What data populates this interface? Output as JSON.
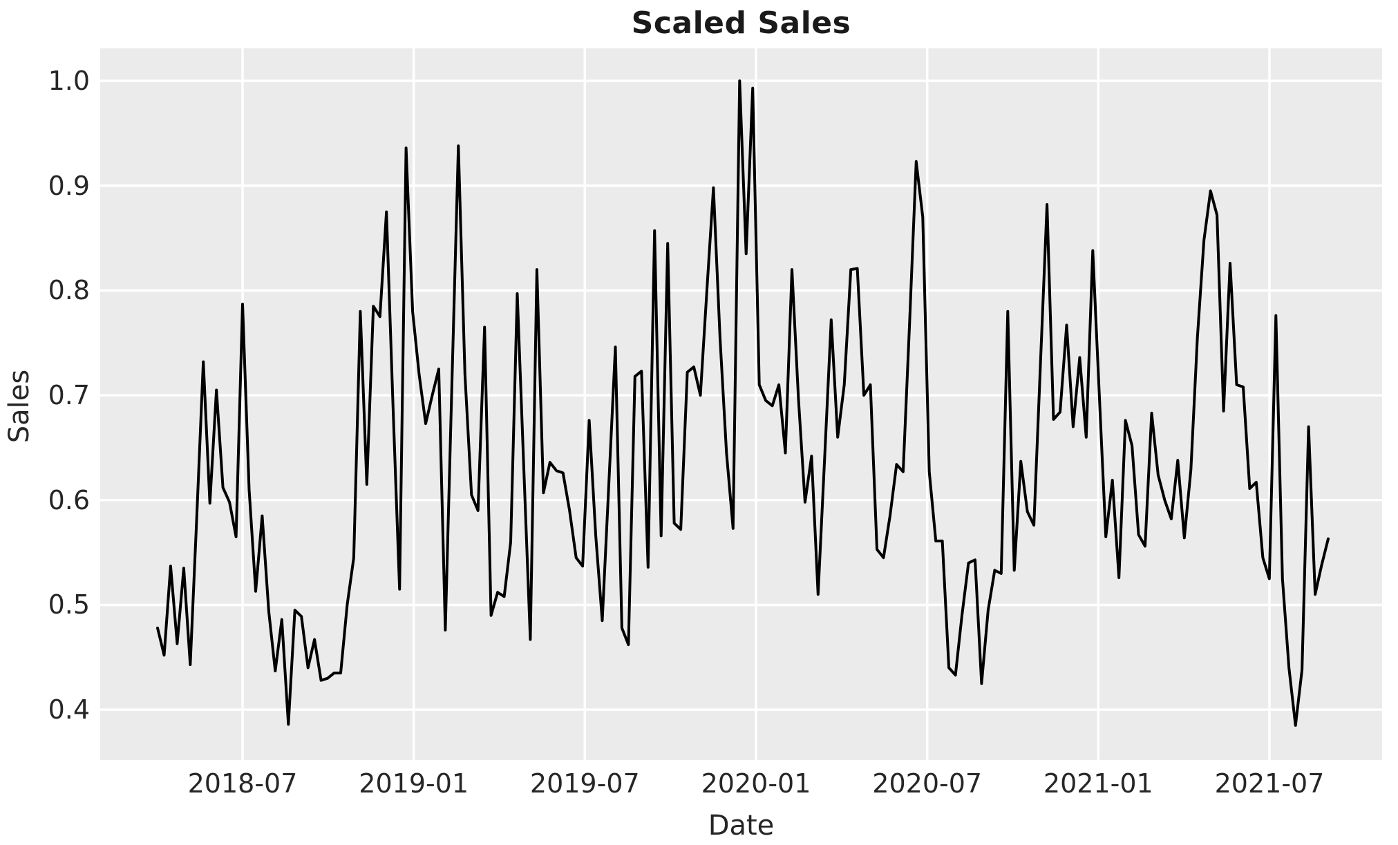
{
  "chart_data": {
    "type": "line",
    "title": "Scaled Sales",
    "xlabel": "Date",
    "ylabel": "Sales",
    "x_tick_labels": [
      "2018-07",
      "2019-01",
      "2019-07",
      "2020-01",
      "2020-07",
      "2021-01",
      "2021-07"
    ],
    "y_ticks": [
      1.0,
      0.9,
      0.8,
      0.7,
      0.6,
      0.5,
      0.4
    ],
    "y_tick_labels": [
      "1.0",
      "0.9",
      "0.8",
      "0.7",
      "0.6",
      "0.5",
      "0.4"
    ],
    "ylim": [
      0.352,
      1.031
    ],
    "grid": true,
    "legend": "none",
    "colors": {
      "line": "#000000",
      "plot_background": "#ebebeb",
      "gridline": "#ffffff",
      "figure_background": "#ffffff",
      "text": "#262626"
    },
    "series": [
      {
        "name": "Sales (scaled)",
        "start_date": "2018-04-01",
        "frequency": "weekly",
        "values": [
          0.478,
          0.452,
          0.537,
          0.463,
          0.535,
          0.443,
          0.585,
          0.732,
          0.597,
          0.705,
          0.612,
          0.598,
          0.565,
          0.787,
          0.61,
          0.513,
          0.585,
          0.494,
          0.437,
          0.486,
          0.386,
          0.495,
          0.489,
          0.44,
          0.467,
          0.428,
          0.43,
          0.435,
          0.435,
          0.5,
          0.545,
          0.78,
          0.615,
          0.785,
          0.775,
          0.875,
          0.69,
          0.515,
          0.936,
          0.78,
          0.72,
          0.673,
          0.7,
          0.725,
          0.476,
          0.71,
          0.938,
          0.72,
          0.605,
          0.59,
          0.765,
          0.49,
          0.512,
          0.508,
          0.56,
          0.797,
          0.63,
          0.467,
          0.82,
          0.607,
          0.636,
          0.628,
          0.626,
          0.59,
          0.545,
          0.537,
          0.676,
          0.566,
          0.485,
          0.615,
          0.746,
          0.478,
          0.462,
          0.718,
          0.723,
          0.536,
          0.857,
          0.566,
          0.845,
          0.578,
          0.572,
          0.722,
          0.727,
          0.7,
          0.8,
          0.898,
          0.755,
          0.645,
          0.573,
          1.0,
          0.835,
          0.993,
          0.71,
          0.695,
          0.69,
          0.71,
          0.645,
          0.82,
          0.697,
          0.598,
          0.642,
          0.51,
          0.64,
          0.772,
          0.66,
          0.71,
          0.82,
          0.821,
          0.7,
          0.71,
          0.553,
          0.545,
          0.585,
          0.634,
          0.627,
          0.77,
          0.923,
          0.87,
          0.627,
          0.561,
          0.561,
          0.44,
          0.433,
          0.49,
          0.54,
          0.543,
          0.425,
          0.495,
          0.533,
          0.53,
          0.78,
          0.533,
          0.637,
          0.589,
          0.576,
          0.73,
          0.882,
          0.677,
          0.684,
          0.767,
          0.67,
          0.736,
          0.66,
          0.838,
          0.7,
          0.565,
          0.619,
          0.526,
          0.676,
          0.652,
          0.567,
          0.556,
          0.683,
          0.624,
          0.6,
          0.582,
          0.638,
          0.564,
          0.629,
          0.755,
          0.848,
          0.895,
          0.872,
          0.685,
          0.826,
          0.71,
          0.708,
          0.611,
          0.617,
          0.545,
          0.525,
          0.776,
          0.525,
          0.44,
          0.385,
          0.438,
          0.67,
          0.51,
          0.538,
          0.563
        ]
      }
    ]
  }
}
